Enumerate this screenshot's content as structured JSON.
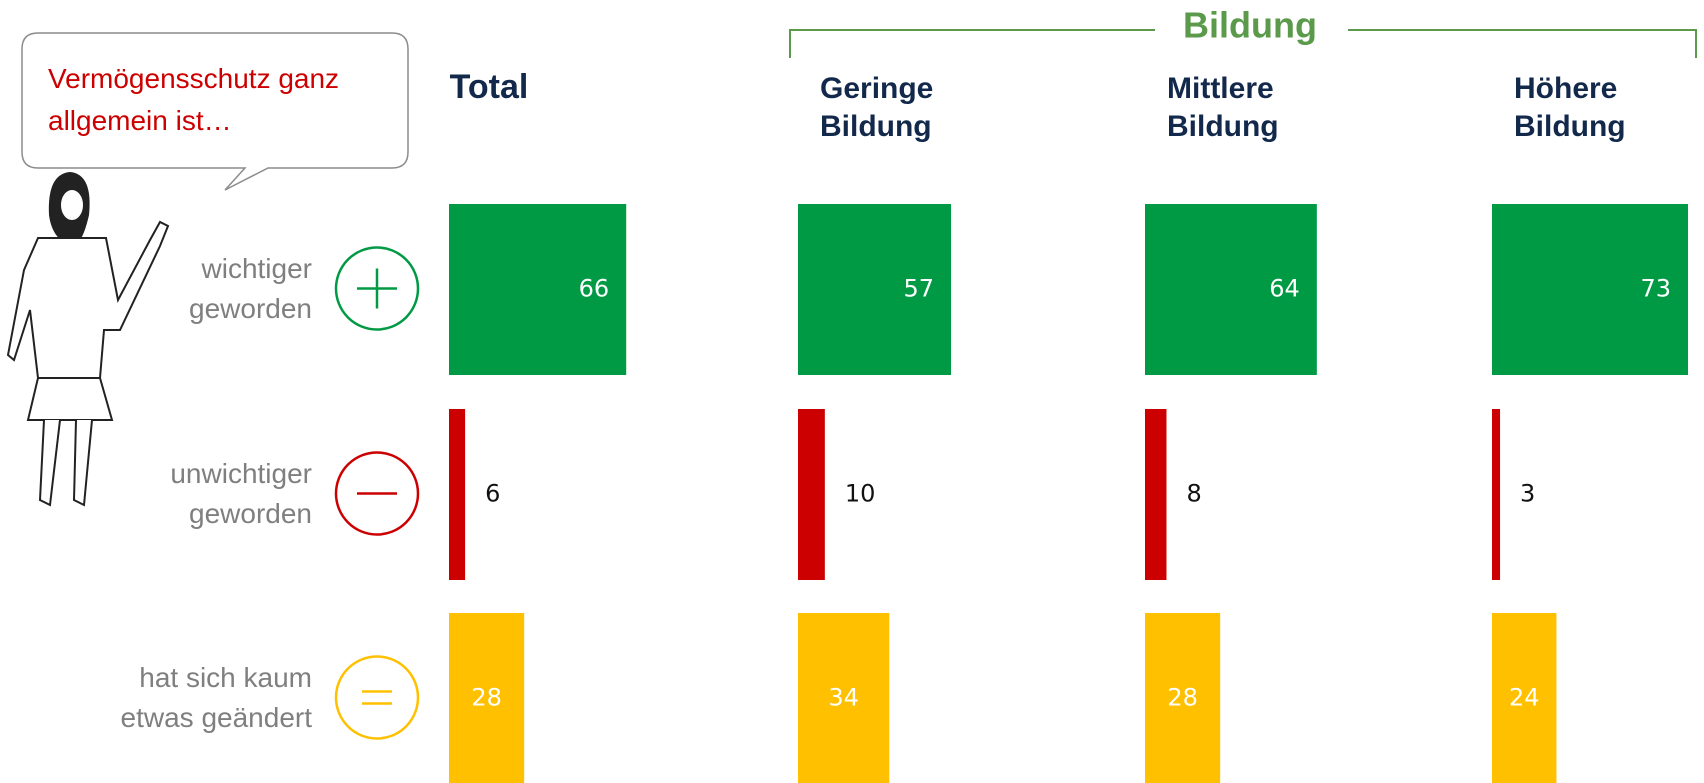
{
  "chart_data": {
    "type": "bar",
    "title": "Vermögensschutz ganz allgemein ist…",
    "group_label": "Bildung",
    "categories": [
      "wichtiger geworden",
      "unwichtiger geworden",
      "hat sich kaum etwas geändert"
    ],
    "category_colors": [
      "#009a44",
      "#cc0000",
      "#ffc000"
    ],
    "series": [
      {
        "name": "Total",
        "values": [
          66,
          6,
          28
        ]
      },
      {
        "name": "Geringe Bildung",
        "values": [
          57,
          10,
          34
        ]
      },
      {
        "name": "Mittlere Bildung",
        "values": [
          64,
          8,
          28
        ]
      },
      {
        "name": "Höhere Bildung",
        "values": [
          73,
          3,
          24
        ]
      }
    ]
  }
}
